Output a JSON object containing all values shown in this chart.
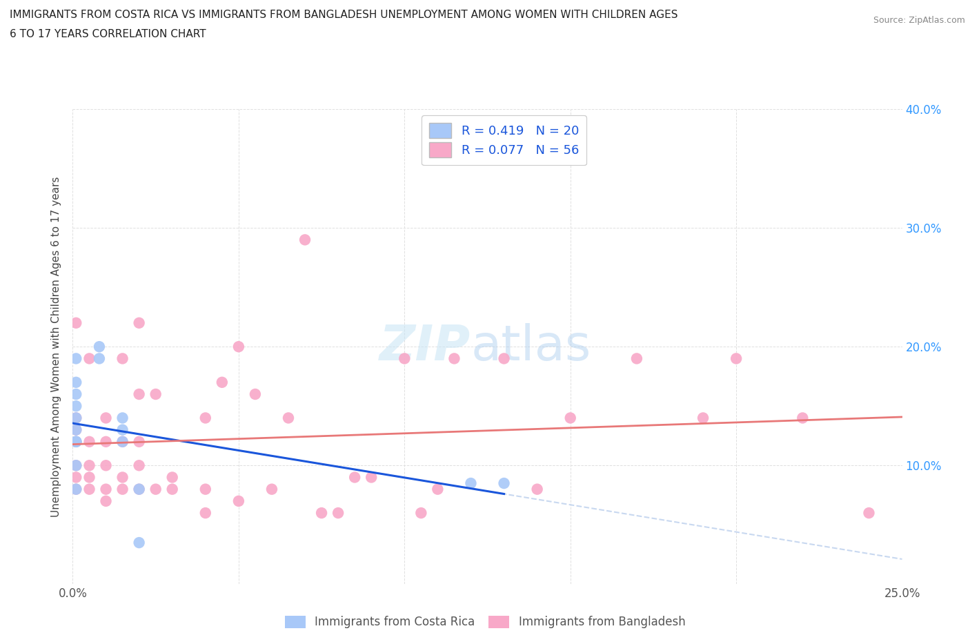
{
  "title_line1": "IMMIGRANTS FROM COSTA RICA VS IMMIGRANTS FROM BANGLADESH UNEMPLOYMENT AMONG WOMEN WITH CHILDREN AGES",
  "title_line2": "6 TO 17 YEARS CORRELATION CHART",
  "source": "Source: ZipAtlas.com",
  "ylabel": "Unemployment Among Women with Children Ages 6 to 17 years",
  "xlim": [
    0.0,
    0.25
  ],
  "ylim": [
    0.0,
    0.4
  ],
  "r_cr": 0.419,
  "n_cr": 20,
  "r_bd": 0.077,
  "n_bd": 56,
  "color_cr": "#a8c8f8",
  "color_bd": "#f8a8c8",
  "trendline_cr_solid": "#1a56db",
  "trendline_cr_dash": "#c8d8f0",
  "trendline_bd": "#e87878",
  "legend_label_cr": "Immigrants from Costa Rica",
  "legend_label_bd": "Immigrants from Bangladesh",
  "cr_x": [
    0.001,
    0.001,
    0.001,
    0.001,
    0.001,
    0.001,
    0.001,
    0.001,
    0.001,
    0.001,
    0.001,
    0.008,
    0.008,
    0.015,
    0.015,
    0.015,
    0.02,
    0.02,
    0.12,
    0.13
  ],
  "cr_y": [
    0.08,
    0.1,
    0.12,
    0.12,
    0.12,
    0.13,
    0.14,
    0.15,
    0.16,
    0.17,
    0.19,
    0.19,
    0.2,
    0.12,
    0.13,
    0.14,
    0.08,
    0.035,
    0.085,
    0.085
  ],
  "bd_x": [
    0.001,
    0.001,
    0.001,
    0.001,
    0.001,
    0.001,
    0.001,
    0.005,
    0.005,
    0.005,
    0.005,
    0.005,
    0.01,
    0.01,
    0.01,
    0.01,
    0.01,
    0.015,
    0.015,
    0.015,
    0.015,
    0.02,
    0.02,
    0.02,
    0.02,
    0.02,
    0.025,
    0.025,
    0.03,
    0.03,
    0.04,
    0.04,
    0.04,
    0.045,
    0.05,
    0.05,
    0.055,
    0.06,
    0.065,
    0.07,
    0.075,
    0.08,
    0.085,
    0.09,
    0.1,
    0.105,
    0.11,
    0.115,
    0.13,
    0.14,
    0.15,
    0.17,
    0.19,
    0.2,
    0.22,
    0.24
  ],
  "bd_y": [
    0.08,
    0.09,
    0.1,
    0.12,
    0.13,
    0.14,
    0.22,
    0.08,
    0.09,
    0.1,
    0.12,
    0.19,
    0.07,
    0.08,
    0.1,
    0.12,
    0.14,
    0.08,
    0.09,
    0.12,
    0.19,
    0.08,
    0.1,
    0.12,
    0.16,
    0.22,
    0.08,
    0.16,
    0.08,
    0.09,
    0.06,
    0.08,
    0.14,
    0.17,
    0.07,
    0.2,
    0.16,
    0.08,
    0.14,
    0.29,
    0.06,
    0.06,
    0.09,
    0.09,
    0.19,
    0.06,
    0.08,
    0.19,
    0.19,
    0.08,
    0.14,
    0.19,
    0.14,
    0.19,
    0.14,
    0.06
  ]
}
